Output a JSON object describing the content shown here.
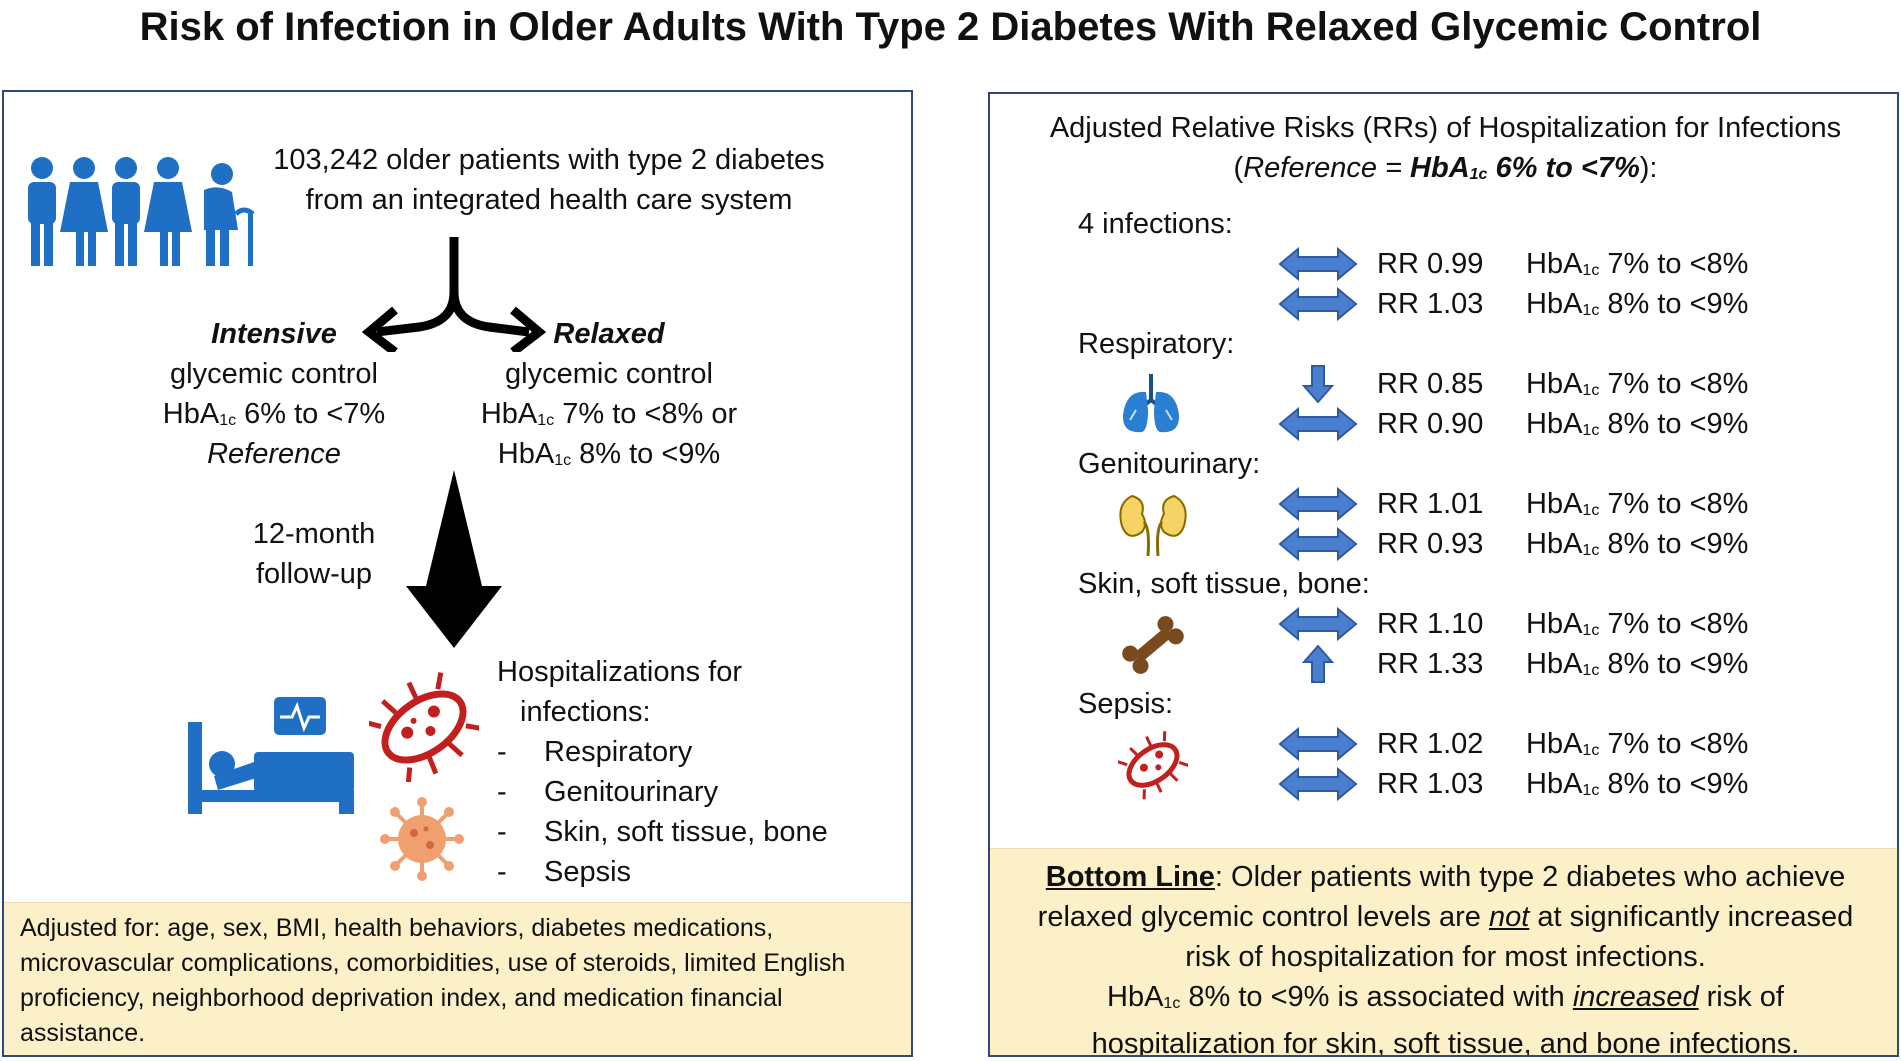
{
  "title": "Risk of Infection in Older Adults With Type 2 Diabetes With Relaxed Glycemic Control",
  "left": {
    "population": [
      "103,242 older patients with type 2 diabetes",
      "from an integrated health care system"
    ],
    "intensive": {
      "label": "Intensive",
      "line1": "glycemic control",
      "hb": "HbA",
      "sub": "1c",
      "range": " 6% to <7%",
      "ref": "Reference"
    },
    "relaxed": {
      "label": "Relaxed",
      "line1": "glycemic control",
      "hb1": "HbA",
      "sub1": "1c",
      "range1": " 7% to <8% or",
      "hb2": "HbA",
      "sub2": "1c",
      "range2": " 8% to <9%"
    },
    "followup": [
      "12-month",
      "follow-up"
    ],
    "outcomes_title": [
      "Hospitalizations for",
      "infections:"
    ],
    "outcomes": [
      "Respiratory",
      "Genitourinary",
      "Skin, soft tissue, bone",
      "Sepsis"
    ],
    "bullet": "-",
    "adjusted": "Adjusted for: age, sex, BMI, health behaviors, diabetes medications, microvascular complications, comorbidities, use of steroids, limited English proficiency, neighborhood deprivation index, and medication financial assistance."
  },
  "right": {
    "heading1": "Adjusted Relative Risks (RRs) of Hospitalization for Infections",
    "heading2_open": "(",
    "heading2_ref": "Reference = ",
    "heading2_hb": "HbA",
    "heading2_sub": "1c",
    "heading2_range": " 6% to <7%",
    "heading2_close": "):",
    "groups": [
      {
        "name": "4 infections:",
        "rows": [
          {
            "arrow": "both",
            "rr": "RR 0.99",
            "hb": "HbA",
            "sub": "1c",
            "range": " 7% to <8%"
          },
          {
            "arrow": "both",
            "rr": "RR 1.03",
            "hb": "HbA",
            "sub": "1c",
            "range": " 8% to <9%"
          }
        ]
      },
      {
        "name": "Respiratory:",
        "rows": [
          {
            "arrow": "down",
            "rr": "RR 0.85",
            "hb": "HbA",
            "sub": "1c",
            "range": " 7% to <8%"
          },
          {
            "arrow": "both",
            "rr": "RR 0.90",
            "hb": "HbA",
            "sub": "1c",
            "range": " 8% to <9%"
          }
        ]
      },
      {
        "name": "Genitourinary:",
        "rows": [
          {
            "arrow": "both",
            "rr": "RR 1.01",
            "hb": "HbA",
            "sub": "1c",
            "range": " 7% to <8%"
          },
          {
            "arrow": "both",
            "rr": "RR 0.93",
            "hb": "HbA",
            "sub": "1c",
            "range": " 8% to <9%"
          }
        ]
      },
      {
        "name": "Skin, soft tissue, bone:",
        "rows": [
          {
            "arrow": "both",
            "rr": "RR 1.10",
            "hb": "HbA",
            "sub": "1c",
            "range": " 7% to <8%"
          },
          {
            "arrow": "up",
            "rr": "RR 1.33",
            "hb": "HbA",
            "sub": "1c",
            "range": " 8% to <9%"
          }
        ]
      },
      {
        "name": "Sepsis:",
        "rows": [
          {
            "arrow": "both",
            "rr": "RR 1.02",
            "hb": "HbA",
            "sub": "1c",
            "range": " 7% to <8%"
          },
          {
            "arrow": "both",
            "rr": "RR 1.03",
            "hb": "HbA",
            "sub": "1c",
            "range": " 8% to <9%"
          }
        ]
      }
    ],
    "bottom": {
      "label": "Bottom Line",
      "p1a": ": Older patients with type 2 diabetes who achieve",
      "p1b_pre": "relaxed glycemic control levels are ",
      "p1b_not": "not",
      "p1b_post": " at significantly increased",
      "p1c": "risk of hospitalization for most infections.",
      "p2_hb": "HbA",
      "p2_sub": "1c",
      "p2_pre": " 8% to <9% is associated with ",
      "p2_inc": "increased",
      "p2_post": " risk of",
      "p3_pre": "hospitalization for ",
      "p3_u": "skin, soft tissue, and bone",
      "p3_post": " infections."
    }
  },
  "colors": {
    "panel_border": "#2f4a7a",
    "footer_bg": "#fcf0c8",
    "icon_blue": "#1f6fc4",
    "arrow_blue": "#4a7fd0",
    "germ_red": "#c21f1f",
    "virus_orange": "#f0a070",
    "lung_blue": "#2a7fd0",
    "kidney_yellow": "#f6d365",
    "bone_brown": "#7a4a1e"
  },
  "icons": [
    "people-icon",
    "branch-arrow-icon",
    "down-arrow-icon",
    "hospital-bed-icon",
    "heart-monitor-icon",
    "bacteria-icon",
    "virus-icon",
    "lungs-icon",
    "kidneys-icon",
    "bone-icon",
    "sepsis-bacteria-icon"
  ]
}
